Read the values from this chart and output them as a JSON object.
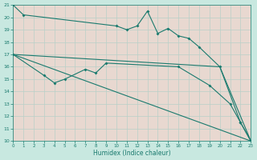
{
  "color": "#1a7a6e",
  "bg_color": "#c8e8e0",
  "plot_bg": "#e8d8d0",
  "grid_color": "#b8d0c8",
  "xlabel": "Humidex (Indice chaleur)",
  "ylim": [
    10,
    21
  ],
  "xlim": [
    0,
    23
  ],
  "line1_x": [
    0,
    1,
    10,
    11,
    12,
    13,
    14,
    15,
    16,
    17,
    18,
    20,
    22,
    23
  ],
  "line1_y": [
    21,
    20.2,
    19.3,
    19.0,
    19.3,
    20.5,
    18.7,
    19.1,
    18.5,
    18.3,
    17.6,
    16.0,
    11.5,
    10.0
  ],
  "line2_x": [
    0,
    20,
    23
  ],
  "line2_y": [
    17.0,
    16.0,
    10.0
  ],
  "line3_x": [
    0,
    3,
    4,
    5,
    7,
    8,
    9,
    16,
    19,
    21,
    22,
    23
  ],
  "line3_y": [
    17.0,
    15.3,
    14.7,
    15.0,
    15.8,
    15.5,
    16.3,
    16.0,
    14.5,
    13.0,
    11.5,
    10.0
  ],
  "line4_x": [
    0,
    23
  ],
  "line4_y": [
    17.0,
    10.0
  ],
  "tick_fontsize": 4.5,
  "xlabel_fontsize": 5.5
}
